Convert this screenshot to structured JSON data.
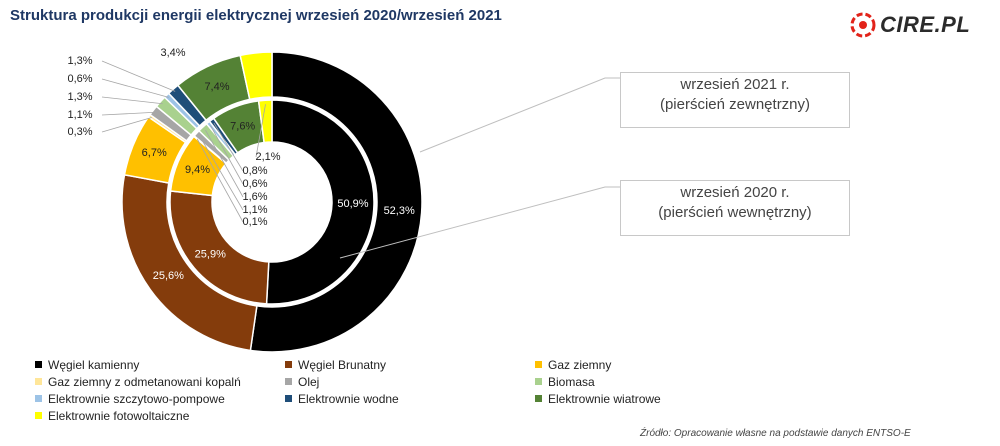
{
  "title": "Struktura produkcji energii elektrycznej wrzesień 2020/wrzesień 2021",
  "logo": {
    "text": "CIRE.PL",
    "icon": "cire-logo-icon",
    "color": "#e2231a"
  },
  "callouts": {
    "outer": {
      "line1": "wrzesień 2021 r.",
      "line2": "(pierścień zewnętrzny)"
    },
    "inner": {
      "line1": "wrzesień 2020 r.",
      "line2": "(pierścień wewnętrzny)"
    }
  },
  "source": "Źródło: Opracowanie własne na podstawie danych ENTSO-E",
  "chart_data": {
    "type": "pie",
    "subtype": "donut",
    "categories": [
      "Węgiel kamienny",
      "Węgiel Brunatny",
      "Gaz  ziemny",
      "Gaz ziemny z odmetanowani kopalń",
      "Olej",
      "Biomasa",
      "Elektrownie szczytowo-pompowe",
      "Elektrownie wodne",
      "Elektrownie wiatrowe",
      "Elektrownie fotowoltaiczne"
    ],
    "colors": [
      "#000000",
      "#843c0c",
      "#ffc000",
      "#ffe699",
      "#a6a6a6",
      "#a9d18e",
      "#9dc3e6",
      "#1f4e79",
      "#548235",
      "#ffff00",
      "#7f6000"
    ],
    "series": [
      {
        "name": "wrzesień 2021 r.",
        "ring": "outer",
        "values": [
          52.3,
          25.6,
          6.7,
          0.3,
          1.1,
          1.3,
          0.6,
          1.3,
          7.4,
          3.4
        ],
        "labels": [
          "52,3%",
          "25,6%",
          "6,7%",
          "0,3%",
          "1,1%",
          "1,3%",
          "0,6%",
          "1,3%",
          "7,4%",
          "3,4%"
        ]
      },
      {
        "name": "wrzesień 2020 r.",
        "ring": "inner",
        "values": [
          50.9,
          25.9,
          9.4,
          0.1,
          1.1,
          1.6,
          0.6,
          0.8,
          7.6,
          2.1
        ],
        "labels": [
          "50,9%",
          "25,9%",
          "9,4%",
          "0,1%",
          "1,1%",
          "1,6%",
          "0,6%",
          "0,8%",
          "7,6%",
          "2,1%"
        ]
      }
    ],
    "legend_position": "bottom"
  }
}
